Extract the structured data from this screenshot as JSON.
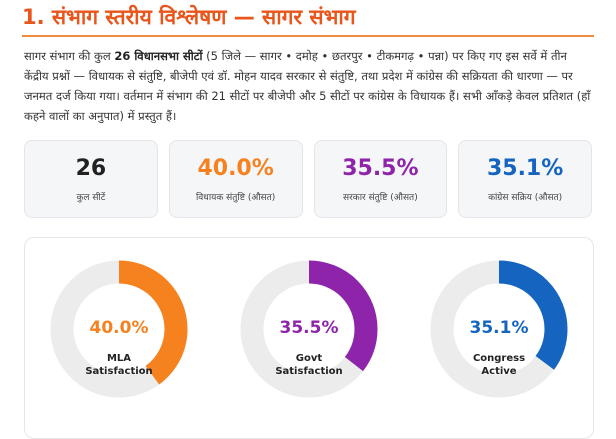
{
  "header": {
    "title": "1. संभाग स्तरीय विश्लेषण — सागर संभाग"
  },
  "intro": {
    "p1": "सागर संभाग की कुल ",
    "p2_bold": "26 विधानसभा सीटों",
    "p3": " (5 जिले — सागर • दमोह • छतरपुर • टीकमगढ़ • पन्ना) पर किए गए इस सर्वे में तीन केंद्रीय प्रश्नों — विधायक से संतुष्टि, बीजेपी एवं डॉ. मोहन यादव सरकार से संतुष्टि, तथा प्रदेश में कांग्रेस की सक्रियता की धारणा — पर जनमत दर्ज किया गया। वर्तमान में संभाग की 21 सीटों पर बीजेपी और 5 सीटों पर कांग्रेस के विधायक हैं। सभी आँकड़े केवल प्रतिशत (हाँ कहने वालों का अनुपात) में प्रस्तुत हैं।"
  },
  "stats": [
    {
      "value": "26",
      "label": "कुल सीटें",
      "color": "#222222"
    },
    {
      "value": "40.0%",
      "label": "विधायक संतुष्टि (औसत)",
      "color": "#f5821f"
    },
    {
      "value": "35.5%",
      "label": "सरकार संतुष्टि (औसत)",
      "color": "#8e24aa"
    },
    {
      "value": "35.1%",
      "label": "कांग्रेस सक्रिय (औसत)",
      "color": "#1565c0"
    }
  ],
  "donuts": [
    {
      "value": 40.0,
      "pct": "40.0%",
      "line1": "MLA",
      "line2": "Satisfaction",
      "color": "#f5821f"
    },
    {
      "value": 35.5,
      "pct": "35.5%",
      "line1": "Govt",
      "line2": "Satisfaction",
      "color": "#8e24aa"
    },
    {
      "value": 35.1,
      "pct": "35.1%",
      "line1": "Congress",
      "line2": "Active",
      "color": "#1565c0"
    }
  ],
  "colors": {
    "accent": "#e8561c",
    "track": "#ececec"
  }
}
